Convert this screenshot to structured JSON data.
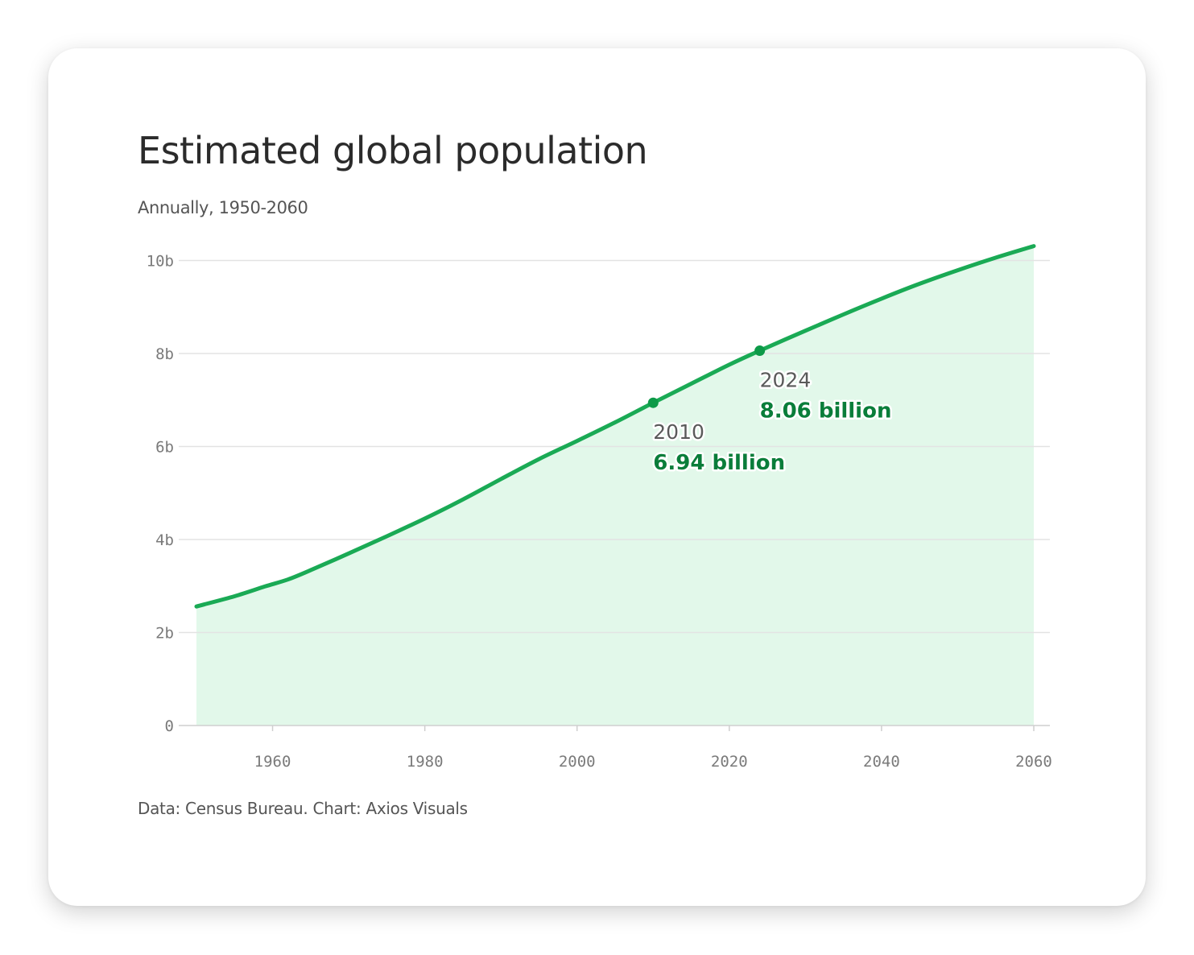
{
  "chart_data": {
    "type": "area",
    "title": "Estimated global population",
    "subtitle": "Annually, 1950-2060",
    "source": "Data: Census Bureau. Chart: Axios Visuals",
    "x": [
      1950,
      1955,
      1959,
      1962,
      1965,
      1970,
      1975,
      1980,
      1985,
      1990,
      1995,
      2000,
      2005,
      2010,
      2015,
      2020,
      2024,
      2030,
      2035,
      2040,
      2045,
      2050,
      2055,
      2060
    ],
    "series": [
      {
        "values": [
          2.56,
          2.78,
          2.99,
          3.14,
          3.34,
          3.7,
          4.07,
          4.45,
          4.86,
          5.3,
          5.73,
          6.12,
          6.52,
          6.94,
          7.35,
          7.76,
          8.06,
          8.49,
          8.84,
          9.18,
          9.5,
          9.79,
          10.06,
          10.31
        ],
        "color": "#1aaa55",
        "fill": "#e2f8ea"
      }
    ],
    "xlim": [
      1950,
      2060
    ],
    "ylim": [
      0,
      10
    ],
    "xticks": [
      1960,
      1980,
      2000,
      2020,
      2040,
      2060
    ],
    "yticks": [
      0,
      2,
      4,
      6,
      8,
      10
    ],
    "ytick_labels": [
      "0",
      "2b",
      "4b",
      "6b",
      "8b",
      "10b"
    ],
    "xtick_labels": [
      "1960",
      "1980",
      "2000",
      "2020",
      "2040",
      "2060"
    ],
    "grid": true,
    "annotations": [
      {
        "x": 2010,
        "y": 6.94,
        "year_label": "2010",
        "value_label": "6.94 billion"
      },
      {
        "x": 2024,
        "y": 8.06,
        "year_label": "2024",
        "value_label": "8.06 billion"
      }
    ],
    "colors": {
      "line": "#1aaa55",
      "area": "#e2f8ea",
      "marker": "#0d9a48",
      "annotation_value": "#0a7d3a",
      "grid": "#e3e3e3"
    }
  }
}
